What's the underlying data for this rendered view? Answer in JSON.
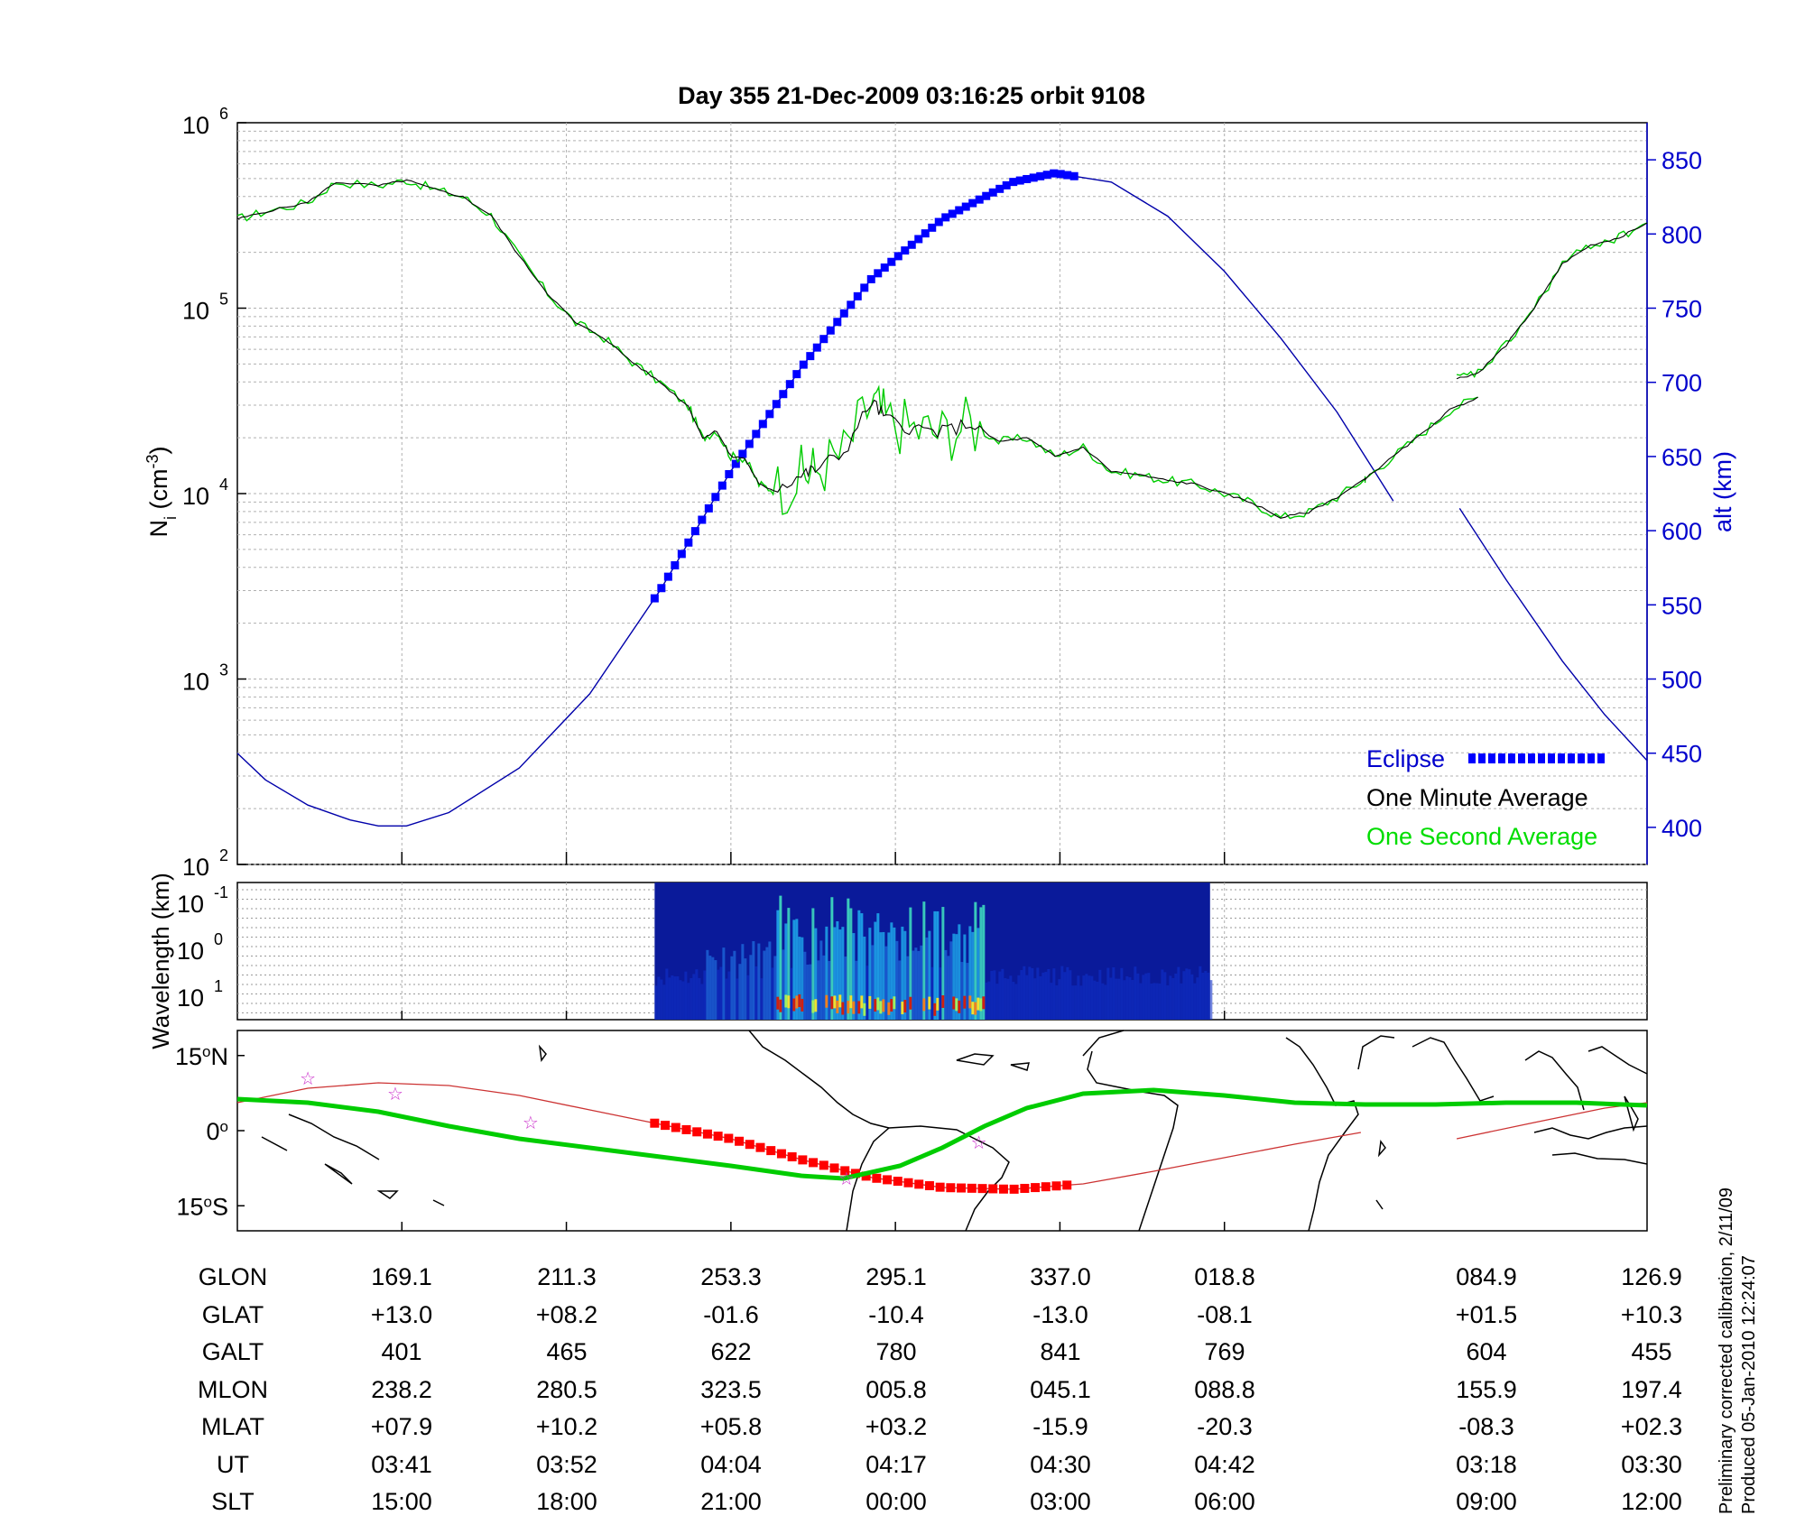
{
  "chart_data": [
    {
      "type": "line",
      "title": "Day 355  21-Dec-2009 03:16:25   orbit 9108",
      "ylabel_left": "N",
      "ylabel_left_sub": "i",
      "ylabel_left_unit_prefix": " (cm",
      "ylabel_left_unit_exp": "-3",
      "ylabel_left_unit_suffix": ")",
      "ylabel_right": "alt (km)",
      "y_scale_left": "log",
      "ylim_left": [
        100,
        1000000
      ],
      "y_ticks_left": [
        {
          "base": "10",
          "exp": "2"
        },
        {
          "base": "10",
          "exp": "3"
        },
        {
          "base": "10",
          "exp": "4"
        },
        {
          "base": "10",
          "exp": "5"
        },
        {
          "base": "10",
          "exp": "6"
        }
      ],
      "ylim_right": [
        375,
        875
      ],
      "y_ticks_right": [
        "400",
        "450",
        "500",
        "550",
        "600",
        "650",
        "700",
        "750",
        "800",
        "850"
      ],
      "grid": true,
      "legend": [
        {
          "name": "Eclipse",
          "color": "#0000ff"
        },
        {
          "name": "One Minute Average",
          "color": "#000000"
        },
        {
          "name": "One Second Average",
          "color": "#00ff00"
        }
      ],
      "legend_position": "bottom-right",
      "series": [
        {
          "kind": "density",
          "note": "x in fraction of pass, y = log10 of ion density Ni (cm^-3)",
          "segments": [
            [
              [
                0.0,
                5.48
              ],
              [
                0.02,
                5.52
              ],
              [
                0.05,
                5.57
              ],
              [
                0.07,
                5.68
              ],
              [
                0.1,
                5.66
              ],
              [
                0.12,
                5.69
              ],
              [
                0.14,
                5.64
              ],
              [
                0.16,
                5.6
              ],
              [
                0.18,
                5.5
              ],
              [
                0.2,
                5.28
              ],
              [
                0.22,
                5.08
              ],
              [
                0.24,
                4.92
              ],
              [
                0.26,
                4.84
              ],
              [
                0.28,
                4.71
              ],
              [
                0.3,
                4.6
              ],
              [
                0.32,
                4.47
              ],
              [
                0.34,
                4.34
              ],
              [
                0.36,
                4.19
              ],
              [
                0.33,
                4.3
              ],
              [
                0.35,
                4.2
              ],
              [
                0.37,
                4.05
              ],
              [
                0.38,
                4.02
              ],
              [
                0.4,
                4.1
              ],
              [
                0.41,
                4.13
              ],
              [
                0.43,
                4.22
              ],
              [
                0.45,
                4.5
              ],
              [
                0.46,
                4.4
              ],
              [
                0.48,
                4.35
              ],
              [
                0.5,
                4.33
              ],
              [
                0.52,
                4.38
              ],
              [
                0.54,
                4.28
              ],
              [
                0.56,
                4.3
              ],
              [
                0.58,
                4.2
              ],
              [
                0.6,
                4.25
              ],
              [
                0.62,
                4.12
              ],
              [
                0.64,
                4.1
              ],
              [
                0.66,
                4.07
              ],
              [
                0.68,
                4.05
              ],
              [
                0.7,
                4.0
              ],
              [
                0.72,
                3.95
              ],
              [
                0.74,
                3.87
              ],
              [
                0.76,
                3.9
              ],
              [
                0.78,
                3.98
              ],
              [
                0.8,
                4.08
              ],
              [
                0.82,
                4.2
              ],
              [
                0.84,
                4.32
              ],
              [
                0.86,
                4.45
              ],
              [
                0.88,
                4.52
              ],
              [
                0.8,
                4.08
              ]
            ],
            [
              [
                0.865,
                4.62
              ],
              [
                0.88,
                4.65
              ],
              [
                0.9,
                4.8
              ],
              [
                0.92,
                5.0
              ],
              [
                0.94,
                5.24
              ],
              [
                0.96,
                5.34
              ],
              [
                0.98,
                5.38
              ],
              [
                1.0,
                5.46
              ]
            ]
          ],
          "color_minute": "#000000",
          "color_second": "#00cc00"
        },
        {
          "kind": "altitude",
          "note": "x in fraction of pass, y = altitude (km)",
          "segments": [
            [
              [
                0.0,
                450
              ],
              [
                0.02,
                432
              ],
              [
                0.05,
                415
              ],
              [
                0.08,
                405
              ],
              [
                0.1,
                401
              ],
              [
                0.12,
                401
              ],
              [
                0.15,
                410
              ],
              [
                0.2,
                440
              ],
              [
                0.25,
                490
              ],
              [
                0.3,
                560
              ],
              [
                0.35,
                640
              ],
              [
                0.4,
                710
              ],
              [
                0.45,
                770
              ],
              [
                0.5,
                810
              ],
              [
                0.55,
                835
              ],
              [
                0.58,
                841
              ],
              [
                0.62,
                835
              ],
              [
                0.66,
                812
              ],
              [
                0.7,
                775
              ],
              [
                0.74,
                730
              ],
              [
                0.78,
                680
              ],
              [
                0.8,
                650
              ],
              [
                0.82,
                620
              ]
            ],
            [
              [
                0.867,
                615
              ],
              [
                0.9,
                567
              ],
              [
                0.94,
                512
              ],
              [
                0.97,
                476
              ],
              [
                1.0,
                445
              ]
            ]
          ],
          "eclipse_range": [
            0.296,
            0.594
          ],
          "color": "#0000aa",
          "eclipse_color": "#0000ff"
        }
      ]
    },
    {
      "type": "heatmap",
      "ylabel": "Wavelength (km)",
      "y_scale": "log",
      "y_ticks": [
        {
          "base": "10",
          "exp": "-1"
        },
        {
          "base": "10",
          "exp": "0"
        },
        {
          "base": "10",
          "exp": "1"
        }
      ],
      "data_range": [
        0.296,
        0.69
      ],
      "note": "spectrogram intensity bursts between roughly 0.38 and 0.52 of the pass"
    },
    {
      "type": "map",
      "y_ticks": [
        {
          "value": "15",
          "deg": "o",
          "hemi": "N"
        },
        {
          "value": "0",
          "deg": "o",
          "hemi": ""
        },
        {
          "value": "15",
          "deg": "o",
          "hemi": "S"
        }
      ],
      "ylim": [
        -20,
        20
      ],
      "footprint_color": "#00cc00",
      "track_color": "#cc3333",
      "eclipse_track_color": "#ff0000",
      "marker_color": "#cc33cc"
    }
  ],
  "ephemeris": {
    "labels": [
      "GLON",
      "GLAT",
      "GALT",
      "MLON",
      "MLAT",
      "UT",
      "SLT"
    ],
    "columns": [
      {
        "GLON": "169.1",
        "GLAT": "+13.0",
        "GALT": "401",
        "MLON": "238.2",
        "MLAT": "+07.9",
        "UT": "03:41",
        "SLT": "15:00"
      },
      {
        "GLON": "211.3",
        "GLAT": "+08.2",
        "GALT": "465",
        "MLON": "280.5",
        "MLAT": "+10.2",
        "UT": "03:52",
        "SLT": "18:00"
      },
      {
        "GLON": "253.3",
        "GLAT": "-01.6",
        "GALT": "622",
        "MLON": "323.5",
        "MLAT": "+05.8",
        "UT": "04:04",
        "SLT": "21:00"
      },
      {
        "GLON": "295.1",
        "GLAT": "-10.4",
        "GALT": "780",
        "MLON": "005.8",
        "MLAT": "+03.2",
        "UT": "04:17",
        "SLT": "00:00"
      },
      {
        "GLON": "337.0",
        "GLAT": "-13.0",
        "GALT": "841",
        "MLON": "045.1",
        "MLAT": "-15.9",
        "UT": "04:30",
        "SLT": "03:00"
      },
      {
        "GLON": "018.8",
        "GLAT": "-08.1",
        "GALT": "769",
        "MLON": "088.8",
        "MLAT": "-20.3",
        "UT": "04:42",
        "SLT": "06:00"
      },
      {
        "GLON": "084.9",
        "GLAT": "+01.5",
        "GALT": "604",
        "MLON": "155.9",
        "MLAT": "-08.3",
        "UT": "03:18",
        "SLT": "09:00"
      },
      {
        "GLON": "126.9",
        "GLAT": "+10.3",
        "GALT": "455",
        "MLON": "197.4",
        "MLAT": "+02.3",
        "UT": "03:30",
        "SLT": "12:00"
      }
    ]
  },
  "notes": {
    "calibration": "Preliminary corrected calibration, 2/11/09",
    "produced": "Produced 05-Jan-2010 12:24:07"
  }
}
